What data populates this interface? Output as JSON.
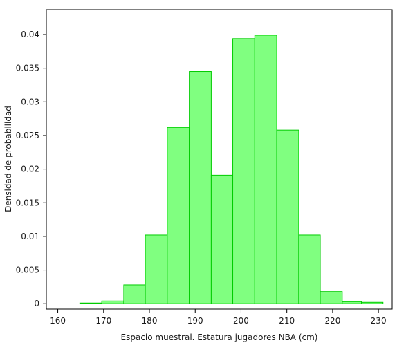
{
  "chart_data": {
    "type": "bar",
    "title": "",
    "xlabel": "Espacio muestral. Estatura jugadores NBA (cm)",
    "ylabel": "Densidad de probabilidad",
    "xlim": [
      157.5,
      233
    ],
    "ylim": [
      -0.0008,
      0.0437
    ],
    "x_ticks": [
      160,
      170,
      180,
      190,
      200,
      210,
      220,
      230
    ],
    "x_tick_labels": [
      "160",
      "170",
      "180",
      "190",
      "200",
      "210",
      "220",
      "230"
    ],
    "y_ticks": [
      0,
      0.005,
      0.01,
      0.015,
      0.02,
      0.025,
      0.03,
      0.035,
      0.04
    ],
    "y_tick_labels": [
      "0",
      "0.005",
      "0.01",
      "0.015",
      "0.02",
      "0.025",
      "0.03",
      "0.035",
      "0.04"
    ],
    "bar_color": "#80ff80",
    "bar_edge_color": "#00cc00",
    "bins": [
      {
        "x0": 160.0,
        "x1": 164.8,
        "value": 0.0
      },
      {
        "x0": 164.8,
        "x1": 169.6,
        "value": 0.0001
      },
      {
        "x0": 169.6,
        "x1": 174.4,
        "value": 0.0004
      },
      {
        "x0": 174.4,
        "x1": 179.1,
        "value": 0.0028
      },
      {
        "x0": 179.1,
        "x1": 183.9,
        "value": 0.0102
      },
      {
        "x0": 183.9,
        "x1": 188.7,
        "value": 0.0262
      },
      {
        "x0": 188.7,
        "x1": 193.5,
        "value": 0.0345
      },
      {
        "x0": 193.5,
        "x1": 198.2,
        "value": 0.0191
      },
      {
        "x0": 198.2,
        "x1": 203.0,
        "value": 0.0394
      },
      {
        "x0": 203.0,
        "x1": 207.8,
        "value": 0.0399
      },
      {
        "x0": 207.8,
        "x1": 212.6,
        "value": 0.0258
      },
      {
        "x0": 212.6,
        "x1": 217.3,
        "value": 0.0102
      },
      {
        "x0": 217.3,
        "x1": 222.1,
        "value": 0.0018
      },
      {
        "x0": 222.1,
        "x1": 226.3,
        "value": 0.0003
      },
      {
        "x0": 226.3,
        "x1": 231.0,
        "value": 0.0002
      }
    ]
  }
}
